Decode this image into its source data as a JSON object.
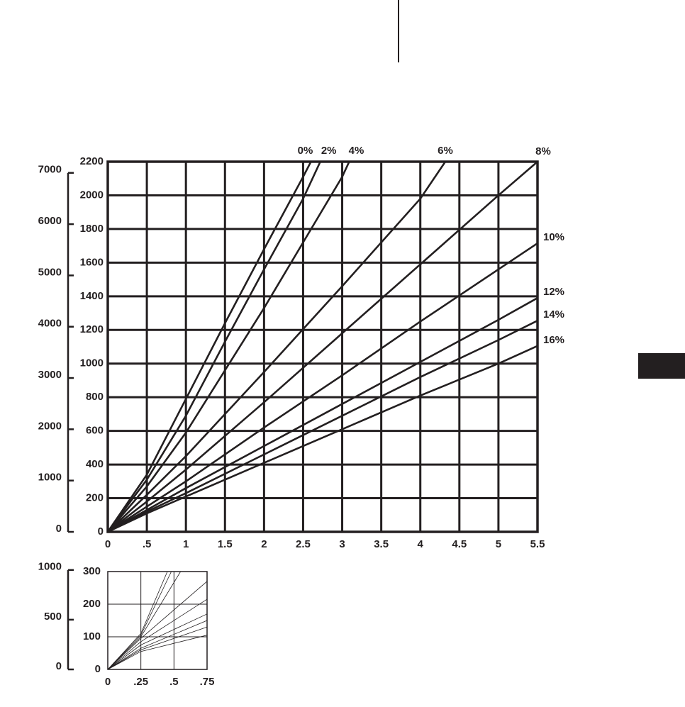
{
  "chart_data": [
    {
      "type": "line",
      "xlim": [
        0,
        5.5
      ],
      "ylim": [
        0,
        2200
      ],
      "y2lim": [
        0,
        7218
      ],
      "xticks": [
        0,
        {
          "value": 0.5,
          "label": ".5"
        },
        1,
        1.5,
        2,
        2.5,
        3,
        3.5,
        4,
        4.5,
        5,
        5.5
      ],
      "yticks": [
        0,
        200,
        400,
        600,
        800,
        1000,
        1200,
        1400,
        1600,
        1800,
        2000,
        2200
      ],
      "y2ticks": [
        0,
        1000,
        2000,
        3000,
        4000,
        5000,
        6000,
        7000
      ],
      "grid": true,
      "series": [
        {
          "name": "0%",
          "color": "#231f20",
          "x": [
            0,
            0.5,
            1,
            1.5,
            2,
            2.5,
            2.6
          ],
          "values": [
            0,
            340,
            790,
            1240,
            1680,
            2110,
            2200
          ]
        },
        {
          "name": "2%",
          "color": "#231f20",
          "x": [
            0,
            0.5,
            1,
            1.5,
            2,
            2.5,
            2.72
          ],
          "values": [
            0,
            310,
            690,
            1130,
            1560,
            1980,
            2200
          ]
        },
        {
          "name": "4%",
          "color": "#231f20",
          "x": [
            0,
            0.5,
            1,
            1.5,
            2,
            2.5,
            3,
            3.09
          ],
          "values": [
            0,
            270,
            590,
            960,
            1330,
            1720,
            2110,
            2200
          ]
        },
        {
          "name": "6%",
          "color": "#231f20",
          "x": [
            0,
            0.5,
            1,
            2,
            3,
            4,
            4.32
          ],
          "values": [
            0,
            220,
            450,
            950,
            1460,
            1980,
            2200
          ]
        },
        {
          "name": "8%",
          "color": "#231f20",
          "x": [
            0,
            0.5,
            1,
            2,
            3,
            4,
            5,
            5.5
          ],
          "values": [
            0,
            180,
            370,
            770,
            1180,
            1590,
            2000,
            2200
          ]
        },
        {
          "name": "10%",
          "color": "#231f20",
          "x": [
            0,
            0.5,
            1,
            2,
            3,
            4,
            5,
            5.5
          ],
          "values": [
            0,
            150,
            300,
            620,
            930,
            1250,
            1560,
            1715
          ]
        },
        {
          "name": "12%",
          "color": "#231f20",
          "x": [
            0,
            0.5,
            1,
            2,
            3,
            4,
            5,
            5.5
          ],
          "values": [
            0,
            130,
            260,
            510,
            760,
            1010,
            1260,
            1390
          ]
        },
        {
          "name": "14%",
          "color": "#231f20",
          "x": [
            0,
            0.5,
            1,
            2,
            3,
            4,
            5,
            5.5
          ],
          "values": [
            0,
            120,
            230,
            460,
            690,
            920,
            1140,
            1255
          ]
        },
        {
          "name": "16%",
          "color": "#231f20",
          "x": [
            0,
            0.5,
            1,
            2,
            3,
            4,
            5,
            5.5
          ],
          "values": [
            0,
            110,
            210,
            410,
            610,
            810,
            1000,
            1105
          ]
        }
      ]
    },
    {
      "type": "line",
      "xlim": [
        0,
        0.75
      ],
      "ylim": [
        0,
        300
      ],
      "y2lim": [
        0,
        984
      ],
      "xticks": [
        0,
        {
          "value": 0.25,
          "label": ".25"
        },
        {
          "value": 0.5,
          "label": ".5"
        },
        {
          "value": 0.75,
          "label": ".75"
        }
      ],
      "yticks": [
        0,
        100,
        200,
        300
      ],
      "y2ticks": [
        0,
        500,
        1000
      ],
      "grid": true,
      "series": [
        {
          "color": "#231f20",
          "x": [
            0,
            0.25,
            0.45
          ],
          "values": [
            0,
            110,
            300
          ]
        },
        {
          "color": "#231f20",
          "x": [
            0,
            0.25,
            0.48
          ],
          "values": [
            0,
            105,
            300
          ]
        },
        {
          "color": "#231f20",
          "x": [
            0,
            0.25,
            0.55
          ],
          "values": [
            0,
            100,
            300
          ]
        },
        {
          "color": "#231f20",
          "x": [
            0,
            0.25,
            0.75
          ],
          "values": [
            0,
            95,
            270
          ]
        },
        {
          "color": "#231f20",
          "x": [
            0,
            0.25,
            0.75
          ],
          "values": [
            0,
            85,
            215
          ]
        },
        {
          "color": "#231f20",
          "x": [
            0,
            0.25,
            0.75
          ],
          "values": [
            0,
            75,
            170
          ]
        },
        {
          "color": "#231f20",
          "x": [
            0,
            0.25,
            0.75
          ],
          "values": [
            0,
            65,
            150
          ]
        },
        {
          "color": "#231f20",
          "x": [
            0,
            0.25,
            0.75
          ],
          "values": [
            0,
            60,
            130
          ]
        },
        {
          "color": "#231f20",
          "x": [
            0,
            0.25,
            0.75
          ],
          "values": [
            0,
            55,
            105
          ]
        }
      ]
    }
  ]
}
